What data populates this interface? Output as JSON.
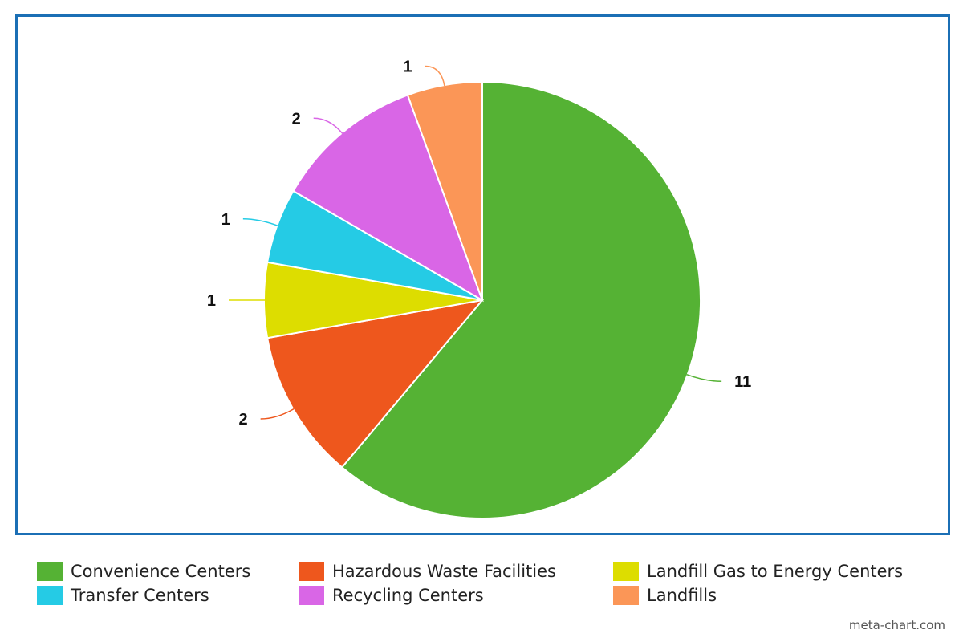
{
  "chart_data": {
    "type": "pie",
    "title": "",
    "categories": [
      "Convenience Centers",
      "Hazardous Waste Facilities",
      "Landfill Gas to Energy Centers",
      "Transfer Centers",
      "Recycling Centers",
      "Landfills"
    ],
    "values": [
      11,
      2,
      1,
      1,
      2,
      1
    ],
    "colors": [
      "#55b234",
      "#ee571d",
      "#dddd00",
      "#25cbe5",
      "#d966e6",
      "#fb9657"
    ],
    "start_angle_deg": 0,
    "direction": "clockwise",
    "legend_position": "bottom"
  },
  "footer": {
    "credit": "meta-chart.com"
  }
}
